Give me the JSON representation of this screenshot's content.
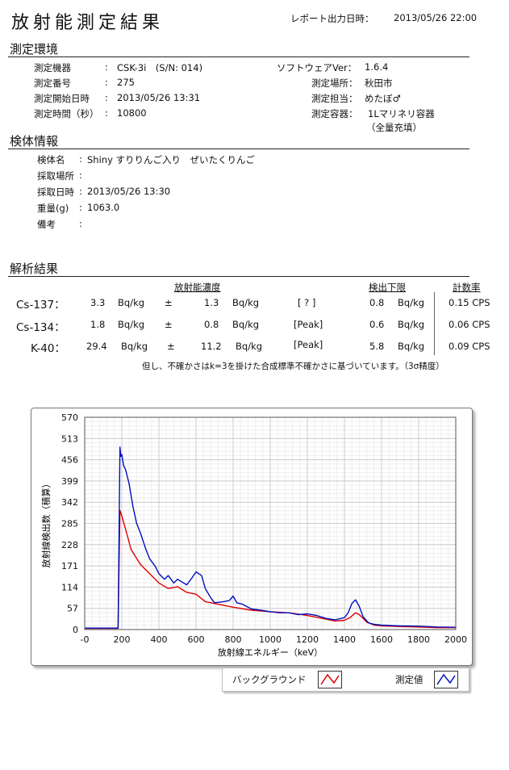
{
  "header": {
    "title": "放射能測定結果",
    "report_label": "レポート出力日時：",
    "report_datetime": "2013/05/26 22:00"
  },
  "env": {
    "section": "測定環境",
    "left": [
      {
        "label": "測定機器",
        "value": "CSK-3i　(S/N: 014)"
      },
      {
        "label": "測定番号",
        "value": "275"
      },
      {
        "label": "測定開始日時",
        "value": "2013/05/26 13:31"
      },
      {
        "label": "測定時間（秒）",
        "value": "10800"
      }
    ],
    "right": [
      {
        "label": "ソフトウェアVer：",
        "value": "1.6.4"
      },
      {
        "label": "測定場所：",
        "value": "秋田市"
      },
      {
        "label": "測定担当：",
        "value": "めたぼ♂"
      },
      {
        "label": "測定容器：",
        "value": "1Lマリネリ容器"
      }
    ],
    "container_note": "（全量充填）"
  },
  "sample": {
    "section": "検体情報",
    "rows": [
      {
        "label": "検体名",
        "value": "Shiny すりりんご入り　ぜいたくりんご"
      },
      {
        "label": "採取場所",
        "value": ""
      },
      {
        "label": "採取日時",
        "value": "2013/05/26 13:30"
      },
      {
        "label": "重量(g)",
        "value": "1063.0"
      },
      {
        "label": "備考",
        "value": ""
      }
    ]
  },
  "analysis": {
    "section": "解析結果",
    "col_activity": "放射能濃度",
    "col_limit": "検出下限",
    "col_rate": "計数率",
    "pm": "±",
    "unit": "Bq/kg",
    "rows": [
      {
        "nuclide": "Cs-137：",
        "value": "3.3",
        "error": "1.3",
        "flag": "[ ? ]",
        "limit": "0.8",
        "rate": "0.15 CPS"
      },
      {
        "nuclide": "Cs-134：",
        "value": "1.8",
        "error": "0.8",
        "flag": "[Peak]",
        "limit": "0.6",
        "rate": "0.06 CPS"
      },
      {
        "nuclide": "K-40：",
        "value": "29.4",
        "error": "11.2",
        "flag": "[Peak]",
        "limit": "5.8",
        "rate": "0.09 CPS"
      }
    ],
    "note": "但し、不確かさはk=3を掛けた合成標準不確かさに基づいています。（3σ精度）"
  },
  "chart_data": {
    "type": "line",
    "xlabel": "放射線エネルギー（keV）",
    "ylabel": "放射線検出数（積算）",
    "xlim": [
      0,
      2000
    ],
    "ylim": [
      0,
      570
    ],
    "x_ticks": [
      "-0",
      "200",
      "400",
      "600",
      "800",
      "1000",
      "1200",
      "1400",
      "1600",
      "1800",
      "2000"
    ],
    "y_ticks": [
      "0",
      "57",
      "114",
      "171",
      "228",
      "285",
      "342",
      "399",
      "456",
      "513",
      "570"
    ],
    "grid": true,
    "legend_position": "bottom-right",
    "series": [
      {
        "name": "バックグラウンド",
        "color": "#e00000",
        "x": [
          0,
          170,
          180,
          190,
          200,
          220,
          250,
          300,
          350,
          400,
          450,
          500,
          550,
          600,
          650,
          700,
          800,
          900,
          1000,
          1100,
          1200,
          1300,
          1350,
          1400,
          1430,
          1460,
          1480,
          1520,
          1560,
          1600,
          1700,
          1800,
          1900,
          2000
        ],
        "y": [
          3,
          3,
          3,
          320,
          305,
          270,
          215,
          175,
          150,
          125,
          110,
          115,
          100,
          95,
          75,
          70,
          60,
          52,
          48,
          45,
          38,
          28,
          23,
          25,
          32,
          45,
          40,
          20,
          12,
          10,
          8,
          7,
          5,
          5
        ]
      },
      {
        "name": "測定値",
        "color": "#0010c0",
        "x": [
          0,
          170,
          180,
          190,
          195,
          200,
          210,
          220,
          240,
          260,
          280,
          300,
          330,
          350,
          380,
          400,
          430,
          450,
          480,
          500,
          550,
          580,
          600,
          630,
          650,
          680,
          700,
          750,
          780,
          800,
          820,
          850,
          900,
          950,
          1000,
          1050,
          1100,
          1150,
          1200,
          1250,
          1300,
          1350,
          1400,
          1420,
          1440,
          1460,
          1480,
          1500,
          1530,
          1560,
          1600,
          1700,
          1800,
          1900,
          2000
        ],
        "y": [
          4,
          4,
          4,
          490,
          465,
          470,
          440,
          430,
          390,
          330,
          285,
          260,
          215,
          190,
          170,
          150,
          135,
          145,
          125,
          135,
          120,
          140,
          155,
          145,
          110,
          85,
          72,
          75,
          78,
          90,
          72,
          68,
          55,
          52,
          48,
          45,
          45,
          40,
          42,
          38,
          30,
          26,
          32,
          45,
          70,
          80,
          62,
          35,
          18,
          14,
          12,
          10,
          9,
          7,
          6
        ]
      }
    ]
  },
  "legend": {
    "background": "バックグラウンド",
    "measured": "測定値"
  }
}
